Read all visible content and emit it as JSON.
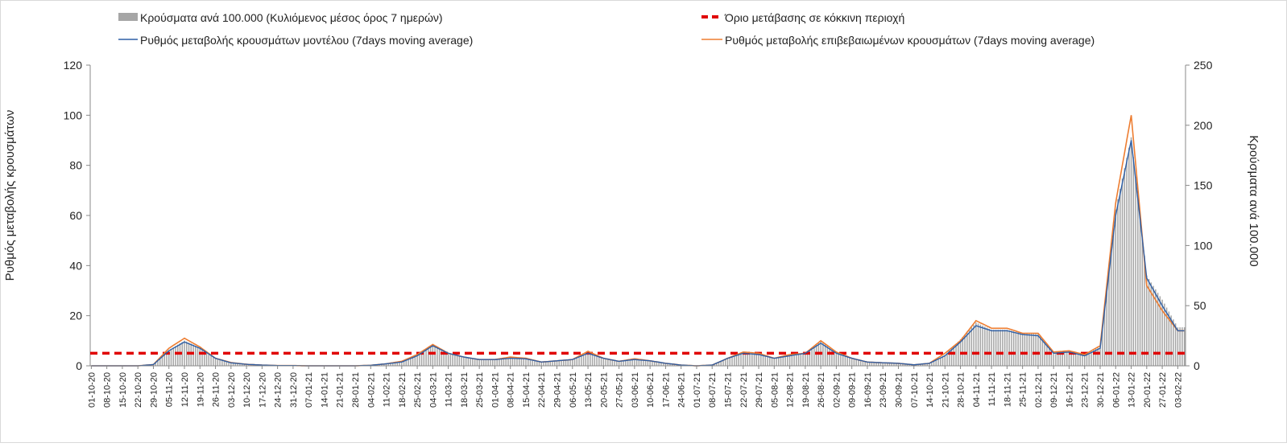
{
  "chart_data": {
    "type": "bar",
    "title": "",
    "ylabel_left": "Ρυθμός μεταβολής κρουσμάτων",
    "ylabel_right": "Κρούσματα ανά 100.000",
    "ylim_left": [
      0,
      120
    ],
    "ylim_right": [
      0,
      250
    ],
    "yticks_left": [
      "0",
      "20",
      "40",
      "60",
      "80",
      "100",
      "120"
    ],
    "yticks_right": [
      "0",
      "50",
      "100",
      "150",
      "200",
      "250"
    ],
    "x_tick_labels": [
      "01-10-20",
      "08-10-20",
      "15-10-20",
      "22-10-20",
      "29-10-20",
      "05-11-20",
      "12-11-20",
      "19-11-20",
      "26-11-20",
      "03-12-20",
      "10-12-20",
      "17-12-20",
      "24-12-20",
      "31-12-20",
      "07-01-21",
      "14-01-21",
      "21-01-21",
      "28-01-21",
      "04-02-21",
      "11-02-21",
      "18-02-21",
      "25-02-21",
      "04-03-21",
      "11-03-21",
      "18-03-21",
      "25-03-21",
      "01-04-21",
      "08-04-21",
      "15-04-21",
      "22-04-21",
      "29-04-21",
      "06-05-21",
      "13-05-21",
      "20-05-21",
      "27-05-21",
      "03-06-21",
      "10-06-21",
      "17-06-21",
      "24-06-21",
      "01-07-21",
      "08-07-21",
      "15-07-21",
      "22-07-21",
      "29-07-21",
      "05-08-21",
      "12-08-21",
      "19-08-21",
      "26-08-21",
      "02-09-21",
      "09-09-21",
      "16-09-21",
      "23-09-21",
      "30-09-21",
      "07-10-21",
      "14-10-21",
      "21-10-21",
      "28-10-21",
      "04-11-21",
      "11-11-21",
      "18-11-21",
      "25-11-21",
      "02-12-21",
      "09-12-21",
      "16-12-21",
      "23-12-21",
      "30-12-21",
      "06-01-22",
      "13-01-22",
      "20-01-22",
      "27-01-22",
      "03-02-22"
    ],
    "threshold_value_left": 5,
    "legend": {
      "placement": "top",
      "bars": "Κρούσματα ανά 100.000 (Κυλιόμενος μέσος όρος 7 ημερών)",
      "threshold": "Όριο μετάβασης σε κόκκινη περιοχή",
      "model": "Ρυθμός μεταβολής κρουσμάτων μοντέλου (7days moving average)",
      "confirmed": "Ρυθμός μεταβολής επιβεβαιωμένων κρουσμάτων (7days moving average)"
    },
    "colors": {
      "bars": "#a6a6a6",
      "threshold": "#e00000",
      "model": "#2e5fa6",
      "confirmed": "#ed7d31"
    },
    "weekly_model_left": [
      0,
      0,
      0,
      0,
      0.5,
      6,
      9.5,
      7,
      3,
      1.2,
      0.6,
      0.3,
      0.1,
      0.1,
      0,
      0,
      0,
      0,
      0.2,
      0.8,
      1.5,
      4,
      8,
      5,
      3.5,
      2.5,
      2.5,
      3,
      2.8,
      1.5,
      2,
      2.5,
      5,
      3,
      1.8,
      2.5,
      2,
      1,
      0.3,
      0,
      0.3,
      3,
      5,
      4.5,
      3,
      4,
      5,
      9,
      5,
      3,
      1.5,
      1.2,
      1,
      0.4,
      1,
      4,
      9.5,
      16,
      14,
      14,
      12.5,
      12,
      5,
      5.5,
      4,
      7,
      60,
      90,
      35,
      24,
      14
    ],
    "weekly_confirmed_left": [
      0,
      0,
      0,
      0,
      0.5,
      7,
      11,
      7.5,
      3,
      1.3,
      0.6,
      0.3,
      0.1,
      0.1,
      0,
      0,
      0,
      0,
      0.2,
      0.8,
      1.8,
      4.5,
      8.5,
      5,
      3.5,
      2.5,
      2.5,
      3.5,
      3,
      1.5,
      2,
      2.5,
      5.8,
      3,
      1.8,
      2.8,
      2,
      1,
      0.3,
      0,
      0.3,
      3,
      5.5,
      5,
      3,
      4.5,
      5,
      10,
      5.5,
      3,
      1.5,
      1.2,
      1,
      0.4,
      1,
      5,
      10,
      18,
      15,
      15,
      13,
      13,
      5.5,
      6,
      4.5,
      8,
      65,
      100,
      32,
      22,
      14
    ],
    "weekly_cases_right": [
      0,
      0,
      0,
      0,
      1,
      13,
      21,
      15,
      6,
      3,
      1.5,
      0.8,
      0.5,
      0.3,
      0.2,
      0.2,
      0.1,
      0.1,
      0.5,
      2,
      4,
      10,
      18,
      11,
      7,
      5,
      5,
      6,
      5.5,
      3,
      4,
      5,
      11,
      6,
      3.5,
      5,
      4,
      2,
      0.6,
      0,
      0.5,
      6,
      11,
      9.5,
      6,
      8,
      10,
      21,
      10,
      6,
      3,
      2.5,
      2,
      1,
      2,
      9,
      22,
      36,
      30,
      30,
      27,
      27,
      11,
      12,
      9,
      16,
      130,
      190,
      75,
      55,
      32
    ]
  }
}
